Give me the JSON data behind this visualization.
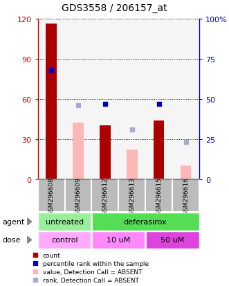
{
  "title": "GDS3558 / 206157_at",
  "samples": [
    "GSM296608",
    "GSM296609",
    "GSM296612",
    "GSM296613",
    "GSM296615",
    "GSM296616"
  ],
  "red_bar_heights": [
    116,
    0,
    40,
    0,
    44,
    0
  ],
  "pink_bar_heights": [
    0,
    42,
    0,
    22,
    0,
    10
  ],
  "blue_square_y": [
    68,
    0,
    47,
    0,
    47,
    0
  ],
  "lightblue_square_y": [
    0,
    46,
    0,
    31,
    0,
    23
  ],
  "has_red": [
    true,
    false,
    true,
    false,
    true,
    false
  ],
  "has_pink": [
    false,
    true,
    false,
    true,
    false,
    true
  ],
  "has_blue": [
    true,
    false,
    true,
    false,
    true,
    false
  ],
  "has_lightblue": [
    false,
    true,
    false,
    true,
    false,
    true
  ],
  "ylim_left": [
    0,
    120
  ],
  "ylim_right": [
    0,
    100
  ],
  "yticks_left": [
    0,
    30,
    60,
    90,
    120
  ],
  "yticks_right": [
    0,
    25,
    50,
    75,
    100
  ],
  "ytick_labels_right": [
    "0",
    "25",
    "50",
    "75",
    "100%"
  ],
  "bar_width": 0.4,
  "red_color": "#AA0000",
  "pink_color": "#FFB6B6",
  "blue_color": "#0000BB",
  "lightblue_color": "#AAAACC",
  "axis_left_color": "#CC0000",
  "axis_right_color": "#0000BB",
  "plot_bg": "#F5F5F5",
  "agent_untreated_color": "#99EE99",
  "agent_deferasirox_color": "#55DD55",
  "dose_control_color": "#FFAAFF",
  "dose_10uM_color": "#FF88FF",
  "dose_50uM_color": "#DD44DD",
  "xtick_bg": "#BBBBBB",
  "legend_items": [
    {
      "color": "#AA0000",
      "label": "count"
    },
    {
      "color": "#0000BB",
      "label": "percentile rank within the sample"
    },
    {
      "color": "#FFB6B6",
      "label": "value, Detection Call = ABSENT"
    },
    {
      "color": "#AAAACC",
      "label": "rank, Detection Call = ABSENT"
    }
  ]
}
